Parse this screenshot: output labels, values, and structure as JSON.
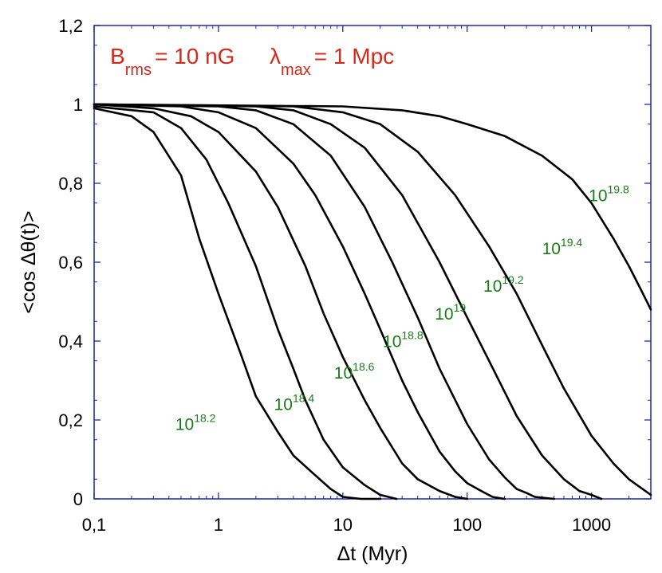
{
  "chart_data": {
    "type": "line",
    "title_parts": {
      "b_symbol": "B",
      "b_sub": "rms",
      "b_value": "= 10 nG",
      "lambda_symbol": "λ",
      "lambda_sub": "max",
      "lambda_value": "= 1 Mpc"
    },
    "xlabel": "Δt (Myr)",
    "ylabel": "<cos Δθ(t)>",
    "xscale": "log",
    "xlim": [
      0.1,
      3000
    ],
    "ylim": [
      0,
      1.2
    ],
    "x_ticks": [
      {
        "value": 0.1,
        "label": "0,1"
      },
      {
        "value": 1,
        "label": "1"
      },
      {
        "value": 10,
        "label": "10"
      },
      {
        "value": 100,
        "label": "100"
      },
      {
        "value": 1000,
        "label": "1000"
      }
    ],
    "y_ticks": [
      {
        "value": 0,
        "label": "0"
      },
      {
        "value": 0.2,
        "label": "0,2"
      },
      {
        "value": 0.4,
        "label": "0,4"
      },
      {
        "value": 0.6,
        "label": "0,6"
      },
      {
        "value": 0.8,
        "label": "0,8"
      },
      {
        "value": 1,
        "label": "1"
      },
      {
        "value": 1.2,
        "label": "1,2"
      }
    ],
    "series": [
      {
        "name": "10^18.2",
        "label_base": "10",
        "label_exp": "18.2",
        "label_at": [
          0.45,
          0.175
        ],
        "points": [
          [
            0.1,
            0.99
          ],
          [
            0.2,
            0.97
          ],
          [
            0.3,
            0.93
          ],
          [
            0.5,
            0.82
          ],
          [
            0.7,
            0.66
          ],
          [
            1.0,
            0.52
          ],
          [
            1.5,
            0.37
          ],
          [
            2.0,
            0.26
          ],
          [
            3.0,
            0.17
          ],
          [
            4.0,
            0.11
          ],
          [
            6.0,
            0.06
          ],
          [
            8.0,
            0.025
          ],
          [
            10.0,
            0.005
          ],
          [
            14.0,
            0.0
          ],
          [
            20.0,
            0.0
          ]
        ]
      },
      {
        "name": "10^18.4",
        "label_base": "10",
        "label_exp": "18.4",
        "label_at": [
          2.8,
          0.225
        ],
        "points": [
          [
            0.1,
            0.995
          ],
          [
            0.3,
            0.98
          ],
          [
            0.5,
            0.94
          ],
          [
            0.8,
            0.86
          ],
          [
            1.2,
            0.75
          ],
          [
            2.0,
            0.59
          ],
          [
            3.0,
            0.43
          ],
          [
            4.0,
            0.33
          ],
          [
            5.0,
            0.25
          ],
          [
            7.0,
            0.15
          ],
          [
            10.0,
            0.08
          ],
          [
            15.0,
            0.035
          ],
          [
            20.0,
            0.01
          ],
          [
            27.0,
            0.0
          ]
        ]
      },
      {
        "name": "10^18.6",
        "label_base": "10",
        "label_exp": "18.6",
        "label_at": [
          8.5,
          0.305
        ],
        "points": [
          [
            0.1,
            1.0
          ],
          [
            0.3,
            0.99
          ],
          [
            0.6,
            0.97
          ],
          [
            1.0,
            0.93
          ],
          [
            2.0,
            0.83
          ],
          [
            3.0,
            0.74
          ],
          [
            5.0,
            0.59
          ],
          [
            7.0,
            0.47
          ],
          [
            10.0,
            0.36
          ],
          [
            15.0,
            0.25
          ],
          [
            20.0,
            0.18
          ],
          [
            30.0,
            0.09
          ],
          [
            40.0,
            0.05
          ],
          [
            60.0,
            0.02
          ],
          [
            80.0,
            0.005
          ],
          [
            100.0,
            0.0
          ]
        ]
      },
      {
        "name": "10^18.8",
        "label_base": "10",
        "label_exp": "18.8",
        "label_at": [
          21,
          0.385
        ],
        "points": [
          [
            0.1,
            1.0
          ],
          [
            0.5,
            0.995
          ],
          [
            1.0,
            0.98
          ],
          [
            2.0,
            0.94
          ],
          [
            4.0,
            0.85
          ],
          [
            6.0,
            0.77
          ],
          [
            10.0,
            0.64
          ],
          [
            15.0,
            0.52
          ],
          [
            20.0,
            0.43
          ],
          [
            30.0,
            0.3
          ],
          [
            40.0,
            0.22
          ],
          [
            60.0,
            0.12
          ],
          [
            80.0,
            0.07
          ],
          [
            100.0,
            0.04
          ],
          [
            130.0,
            0.02
          ],
          [
            160.0,
            0.005
          ],
          [
            200.0,
            0.0
          ]
        ]
      },
      {
        "name": "10^19",
        "label_base": "10",
        "label_exp": "19",
        "label_at": [
          55,
          0.455
        ],
        "points": [
          [
            0.1,
            1.0
          ],
          [
            1.0,
            0.995
          ],
          [
            2.0,
            0.985
          ],
          [
            4.0,
            0.95
          ],
          [
            8.0,
            0.87
          ],
          [
            15.0,
            0.74
          ],
          [
            25.0,
            0.6
          ],
          [
            40.0,
            0.46
          ],
          [
            60.0,
            0.33
          ],
          [
            100.0,
            0.19
          ],
          [
            150.0,
            0.1
          ],
          [
            200.0,
            0.055
          ],
          [
            250.0,
            0.025
          ],
          [
            300.0,
            0.015
          ],
          [
            350.0,
            0.005
          ],
          [
            500.0,
            0.0
          ]
        ]
      },
      {
        "name": "10^19.2",
        "label_base": "10",
        "label_exp": "19.2",
        "label_at": [
          135,
          0.525
        ],
        "points": [
          [
            0.1,
            1.0
          ],
          [
            2.0,
            0.995
          ],
          [
            4.0,
            0.985
          ],
          [
            8.0,
            0.95
          ],
          [
            15.0,
            0.89
          ],
          [
            30.0,
            0.77
          ],
          [
            60.0,
            0.6
          ],
          [
            100.0,
            0.46
          ],
          [
            150.0,
            0.35
          ],
          [
            250.0,
            0.21
          ],
          [
            400.0,
            0.11
          ],
          [
            600.0,
            0.05
          ],
          [
            800.0,
            0.02
          ],
          [
            1000.0,
            0.01
          ],
          [
            1200.0,
            0.0
          ]
        ]
      },
      {
        "name": "10^19.4",
        "label_base": "10",
        "label_exp": "19.4",
        "label_at": [
          400,
          0.62
        ],
        "points": [
          [
            0.1,
            1.0
          ],
          [
            4.0,
            0.995
          ],
          [
            10.0,
            0.98
          ],
          [
            20.0,
            0.95
          ],
          [
            40.0,
            0.88
          ],
          [
            80.0,
            0.77
          ],
          [
            150.0,
            0.64
          ],
          [
            250.0,
            0.52
          ],
          [
            400.0,
            0.39
          ],
          [
            600.0,
            0.28
          ],
          [
            1000.0,
            0.16
          ],
          [
            1500.0,
            0.09
          ],
          [
            2000.0,
            0.05
          ],
          [
            3000.0,
            0.01
          ]
        ]
      },
      {
        "name": "10^19.8",
        "label_base": "10",
        "label_exp": "19.8",
        "label_at": [
          950,
          0.755
        ],
        "points": [
          [
            0.1,
            1.0
          ],
          [
            10.0,
            0.995
          ],
          [
            30.0,
            0.985
          ],
          [
            60.0,
            0.97
          ],
          [
            100.0,
            0.95
          ],
          [
            200.0,
            0.92
          ],
          [
            400.0,
            0.87
          ],
          [
            700.0,
            0.81
          ],
          [
            1000.0,
            0.75
          ],
          [
            1500.0,
            0.66
          ],
          [
            2000.0,
            0.59
          ],
          [
            2500.0,
            0.53
          ],
          [
            3000.0,
            0.48
          ]
        ]
      }
    ]
  }
}
